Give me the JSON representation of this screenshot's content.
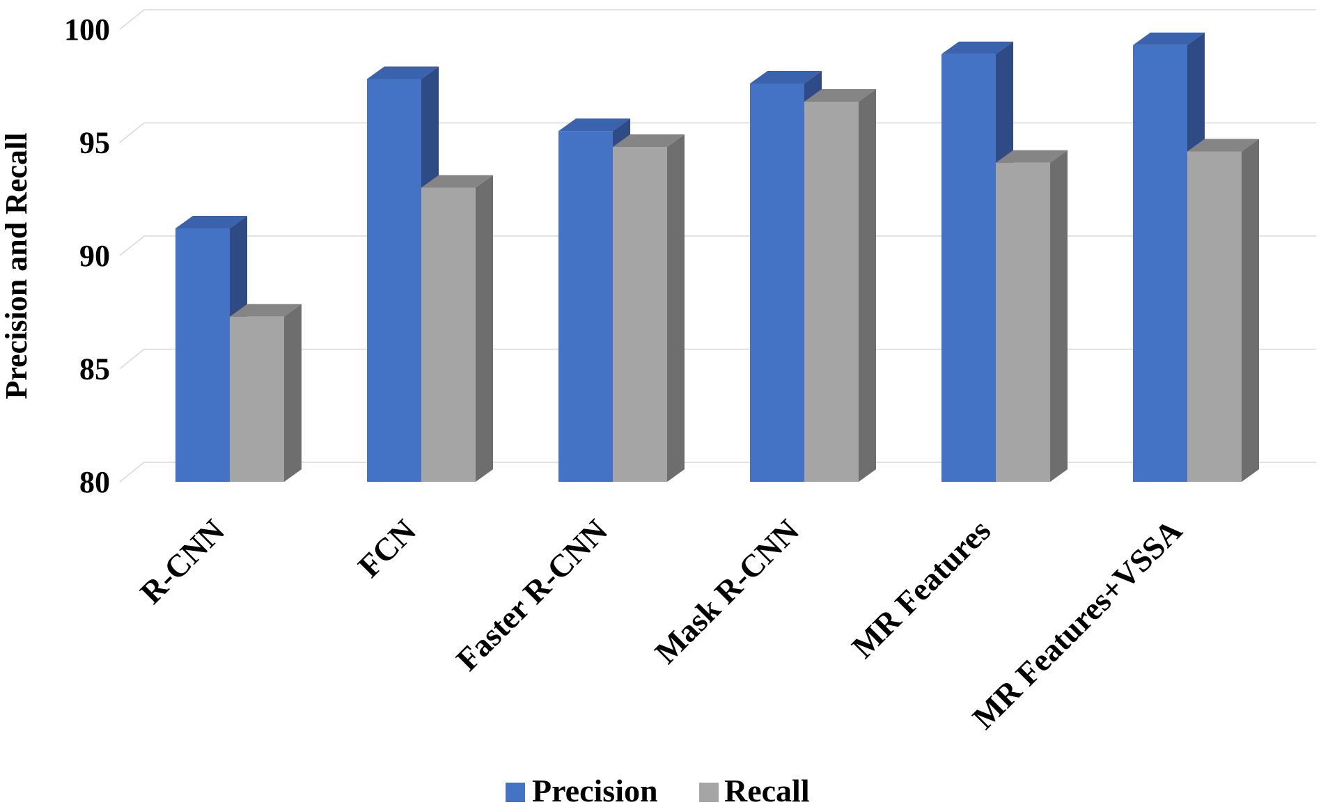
{
  "chart_data": {
    "type": "bar",
    "title": "",
    "xlabel": "",
    "ylabel": "Precision and Recall",
    "ylim": [
      80,
      100
    ],
    "yticks": [
      80,
      85,
      90,
      95,
      100
    ],
    "grid": true,
    "legend_position": "bottom",
    "categories": [
      "R-CNN",
      "FCN",
      "Faster R-CNN",
      "Mask R-CNN",
      "MR Features",
      "MR Features+VSSA"
    ],
    "series": [
      {
        "name": "Precision",
        "color": "#4472C4",
        "side_color": "#2E4B85",
        "top_color": "#3A62AD",
        "values": [
          91.2,
          97.8,
          95.5,
          97.6,
          98.9,
          99.3
        ]
      },
      {
        "name": "Recall",
        "color": "#A5A5A5",
        "side_color": "#6E6E6E",
        "top_color": "#858585",
        "values": [
          87.3,
          93.0,
          94.8,
          96.8,
          94.1,
          94.6
        ]
      }
    ]
  }
}
